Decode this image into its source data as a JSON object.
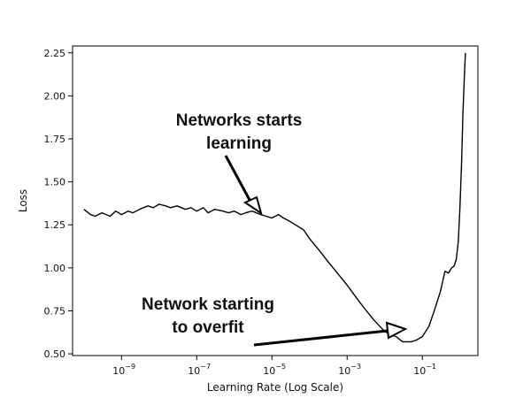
{
  "chart_data": {
    "type": "line",
    "title": "",
    "xlabel": "Learning Rate (Log Scale)",
    "ylabel": "Loss",
    "xscale": "log",
    "xlim": [
      5e-11,
      3
    ],
    "ylim": [
      0.49,
      2.29
    ],
    "grid": false,
    "x_ticks": [
      {
        "value": 1e-09,
        "base": "10",
        "exp": "−9"
      },
      {
        "value": 1e-07,
        "base": "10",
        "exp": "−7"
      },
      {
        "value": 1e-05,
        "base": "10",
        "exp": "−5"
      },
      {
        "value": 0.001,
        "base": "10",
        "exp": "−3"
      },
      {
        "value": 0.1,
        "base": "10",
        "exp": "−1"
      }
    ],
    "y_ticks": [
      {
        "value": 0.5,
        "label": "0.50"
      },
      {
        "value": 0.75,
        "label": "0.75"
      },
      {
        "value": 1.0,
        "label": "1.00"
      },
      {
        "value": 1.25,
        "label": "1.25"
      },
      {
        "value": 1.5,
        "label": "1.50"
      },
      {
        "value": 1.75,
        "label": "1.75"
      },
      {
        "value": 2.0,
        "label": "2.00"
      },
      {
        "value": 2.25,
        "label": "2.25"
      }
    ],
    "series": [
      {
        "color": "#000000",
        "x": [
          1e-10,
          1.5e-10,
          2e-10,
          3e-10,
          5e-10,
          7e-10,
          1e-09,
          1.5e-09,
          2e-09,
          3e-09,
          5e-09,
          7e-09,
          1e-08,
          1.5e-08,
          2e-08,
          3e-08,
          5e-08,
          7e-08,
          1e-07,
          1.5e-07,
          2e-07,
          3e-07,
          5e-07,
          7e-07,
          1e-06,
          1.5e-06,
          2e-06,
          3e-06,
          5e-06,
          7e-06,
          1e-05,
          1.5e-05,
          2e-05,
          3e-05,
          5e-05,
          7e-05,
          0.0001,
          0.0002,
          0.0003,
          0.0005,
          0.001,
          0.002,
          0.003,
          0.005,
          0.01,
          0.02,
          0.03,
          0.05,
          0.07,
          0.1,
          0.15,
          0.2,
          0.3,
          0.4,
          0.5,
          0.6,
          0.7,
          0.8,
          0.9,
          1.0,
          1.1,
          1.2,
          1.3,
          1.4
        ],
        "y": [
          1.34,
          1.31,
          1.3,
          1.32,
          1.3,
          1.33,
          1.31,
          1.33,
          1.32,
          1.34,
          1.36,
          1.35,
          1.37,
          1.36,
          1.35,
          1.36,
          1.34,
          1.35,
          1.33,
          1.35,
          1.32,
          1.34,
          1.33,
          1.32,
          1.33,
          1.31,
          1.32,
          1.33,
          1.31,
          1.3,
          1.29,
          1.31,
          1.29,
          1.27,
          1.24,
          1.22,
          1.17,
          1.09,
          1.04,
          0.98,
          0.9,
          0.81,
          0.76,
          0.7,
          0.63,
          0.6,
          0.57,
          0.57,
          0.58,
          0.6,
          0.66,
          0.74,
          0.86,
          0.98,
          0.97,
          1.0,
          1.01,
          1.05,
          1.15,
          1.35,
          1.6,
          1.9,
          2.1,
          2.25
        ]
      }
    ],
    "annotations": [
      {
        "lines": [
          "Networks starts",
          "learning"
        ],
        "target": {
          "x": 1e-05,
          "y": 1.32
        }
      },
      {
        "lines": [
          "Network starting",
          "to overfit"
        ],
        "target": {
          "x": 0.05,
          "y": 0.59
        }
      }
    ]
  }
}
